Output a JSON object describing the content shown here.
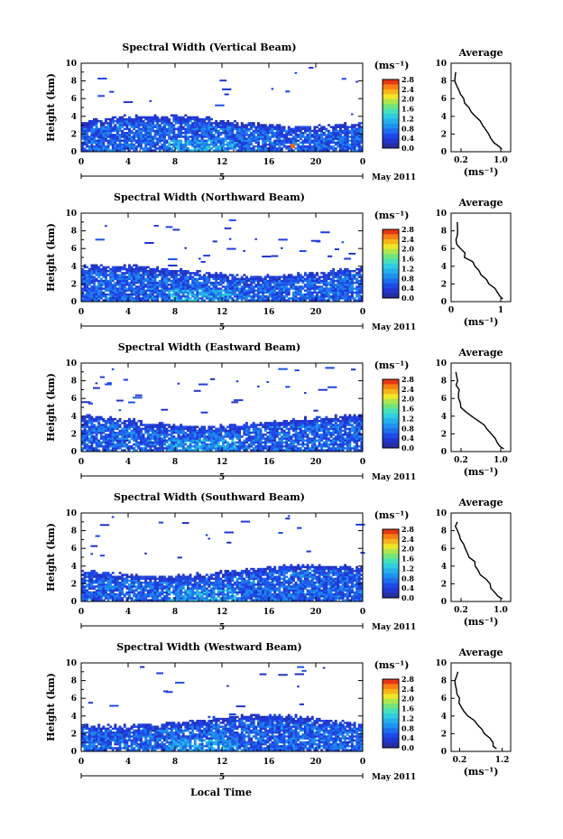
{
  "chart_data": [
    {
      "type": "heatmap",
      "title": "Spectral Width (Vertical Beam)",
      "xlabel": "",
      "ylabel": "Height (km)",
      "xlim": [
        0,
        24
      ],
      "ylim": [
        0,
        10
      ],
      "x_ticks": [
        "0",
        "4",
        "8",
        "12",
        "16",
        "20",
        "0"
      ],
      "y_ticks": [
        "0",
        "2",
        "4",
        "6",
        "8",
        "10"
      ],
      "day_label": "5",
      "date_label": "May 2011",
      "colorbar": {
        "unit": "(ms⁻¹)",
        "min": 0.0,
        "max": 2.8,
        "ticks": [
          "2.8",
          "2.4",
          "2.0",
          "1.6",
          "1.2",
          "0.8",
          "0.4",
          "0.0"
        ]
      },
      "profile": {
        "title": "Average",
        "xlabel": "(ms⁻¹)",
        "x_ticks": [
          "0.2",
          "1.0"
        ],
        "xlim": [
          0,
          1.2
        ],
        "ylim": [
          0,
          10
        ],
        "heights": [
          0.3,
          0.6,
          1.0,
          1.5,
          2.0,
          2.5,
          3.0,
          3.5,
          4.0,
          4.5,
          5.0,
          5.5,
          6.0,
          6.5,
          7.0,
          7.5,
          8.0,
          8.5,
          9.0
        ],
        "values": [
          1.05,
          0.95,
          0.88,
          0.82,
          0.72,
          0.68,
          0.6,
          0.55,
          0.48,
          0.4,
          0.32,
          0.28,
          0.25,
          0.18,
          0.15,
          0.12,
          0.1,
          0.09,
          0.1
        ]
      }
    },
    {
      "type": "heatmap",
      "title": "Spectral Width (Northward Beam)",
      "xlabel": "",
      "ylabel": "Height (km)",
      "xlim": [
        0,
        24
      ],
      "ylim": [
        0,
        10
      ],
      "x_ticks": [
        "0",
        "4",
        "8",
        "12",
        "16",
        "20",
        "0"
      ],
      "y_ticks": [
        "0",
        "2",
        "4",
        "6",
        "8",
        "10"
      ],
      "day_label": "5",
      "date_label": "May 2011",
      "colorbar": {
        "unit": "(ms⁻¹)",
        "min": 0.0,
        "max": 2.8,
        "ticks": [
          "2.8",
          "2.4",
          "2.0",
          "1.6",
          "1.2",
          "0.8",
          "0.4",
          "0.0"
        ]
      },
      "profile": {
        "title": "Average",
        "xlabel": "(ms⁻¹)",
        "x_ticks": [
          "0",
          "1"
        ],
        "xlim": [
          0,
          1.2
        ],
        "ylim": [
          0,
          10
        ],
        "heights": [
          0.3,
          0.6,
          1.0,
          1.5,
          2.0,
          2.5,
          3.0,
          3.5,
          4.0,
          4.5,
          5.0,
          5.5,
          6.0,
          6.5,
          7.0,
          7.5,
          8.0,
          8.5,
          9.0
        ],
        "values": [
          1.05,
          0.98,
          0.9,
          0.85,
          0.78,
          0.7,
          0.62,
          0.55,
          0.48,
          0.4,
          0.3,
          0.25,
          0.2,
          0.15,
          0.12,
          0.1,
          0.1,
          0.09,
          0.1
        ]
      }
    },
    {
      "type": "heatmap",
      "title": "Spectral Width (Eastward Beam)",
      "xlabel": "",
      "ylabel": "Height (km)",
      "xlim": [
        0,
        24
      ],
      "ylim": [
        0,
        10
      ],
      "x_ticks": [
        "0",
        "4",
        "8",
        "12",
        "16",
        "20",
        "0"
      ],
      "y_ticks": [
        "0",
        "2",
        "4",
        "6",
        "8",
        "10"
      ],
      "day_label": "5",
      "date_label": "May 2011",
      "colorbar": {
        "unit": "(ms⁻¹)",
        "min": 0.0,
        "max": 2.8,
        "ticks": [
          "2.8",
          "2.4",
          "2.0",
          "1.6",
          "1.2",
          "0.8",
          "0.4",
          "0.0"
        ]
      },
      "profile": {
        "title": "Average",
        "xlabel": "(ms⁻¹)",
        "x_ticks": [
          "0.2",
          "1.0"
        ],
        "xlim": [
          0,
          1.2
        ],
        "ylim": [
          0,
          10
        ],
        "heights": [
          0.3,
          0.6,
          1.0,
          1.5,
          2.0,
          2.5,
          3.0,
          3.5,
          4.0,
          4.5,
          5.0,
          5.5,
          6.0,
          6.5,
          7.0,
          7.5,
          8.0,
          8.5,
          9.0
        ],
        "values": [
          1.05,
          0.98,
          0.92,
          0.88,
          0.8,
          0.72,
          0.65,
          0.55,
          0.42,
          0.3,
          0.22,
          0.2,
          0.18,
          0.15,
          0.13,
          0.12,
          0.12,
          0.11,
          0.12
        ]
      }
    },
    {
      "type": "heatmap",
      "title": "Spectral Width (Southward Beam)",
      "xlabel": "",
      "ylabel": "Height (km)",
      "xlim": [
        0,
        24
      ],
      "ylim": [
        0,
        10
      ],
      "x_ticks": [
        "0",
        "4",
        "8",
        "12",
        "16",
        "20",
        "0"
      ],
      "y_ticks": [
        "0",
        "2",
        "4",
        "6",
        "8",
        "10"
      ],
      "day_label": "5",
      "date_label": "May 2011",
      "colorbar": {
        "unit": "(ms⁻¹)",
        "min": 0.0,
        "max": 2.8,
        "ticks": [
          "2.8",
          "2.4",
          "2.0",
          "1.6",
          "1.2",
          "0.8",
          "0.4",
          "0.0"
        ]
      },
      "profile": {
        "title": "Average",
        "xlabel": "(ms⁻¹)",
        "x_ticks": [
          "0.2",
          "1.0"
        ],
        "xlim": [
          0,
          1.2
        ],
        "ylim": [
          0,
          10
        ],
        "heights": [
          0.3,
          0.6,
          1.0,
          1.5,
          2.0,
          2.5,
          3.0,
          3.5,
          4.0,
          4.5,
          5.0,
          5.5,
          6.0,
          6.5,
          7.0,
          7.5,
          8.0,
          8.5,
          9.0
        ],
        "values": [
          1.0,
          0.95,
          0.9,
          0.82,
          0.75,
          0.7,
          0.62,
          0.58,
          0.5,
          0.45,
          0.38,
          0.3,
          0.25,
          0.22,
          0.18,
          0.15,
          0.14,
          0.12,
          0.12
        ]
      }
    },
    {
      "type": "heatmap",
      "title": "Spectral Width (Westward Beam)",
      "xlabel": "Local Time",
      "ylabel": "Height (km)",
      "xlim": [
        0,
        24
      ],
      "ylim": [
        0,
        10
      ],
      "x_ticks": [
        "0",
        "4",
        "8",
        "12",
        "16",
        "20",
        "0"
      ],
      "y_ticks": [
        "0",
        "2",
        "4",
        "6",
        "8",
        "10"
      ],
      "day_label": "5",
      "date_label": "May 2011",
      "colorbar": {
        "unit": "(ms⁻¹)",
        "min": 0.0,
        "max": 2.8,
        "ticks": [
          "2.8",
          "2.4",
          "2.0",
          "1.6",
          "1.2",
          "0.8",
          "0.4",
          "0.0"
        ]
      },
      "profile": {
        "title": "Average",
        "xlabel": "(ms⁻¹)",
        "x_ticks": [
          "0.2",
          "1.2"
        ],
        "xlim": [
          0,
          1.4
        ],
        "ylim": [
          0,
          10
        ],
        "heights": [
          0.3,
          0.6,
          1.0,
          1.5,
          2.0,
          2.5,
          3.0,
          3.5,
          4.0,
          4.5,
          5.0,
          5.5,
          6.0,
          6.5,
          7.0,
          7.5,
          8.0,
          8.5,
          9.0
        ],
        "values": [
          1.1,
          1.0,
          0.95,
          0.88,
          0.8,
          0.72,
          0.62,
          0.52,
          0.42,
          0.32,
          0.25,
          0.2,
          0.18,
          0.15,
          0.14,
          0.13,
          0.12,
          0.12,
          0.12
        ]
      }
    }
  ]
}
